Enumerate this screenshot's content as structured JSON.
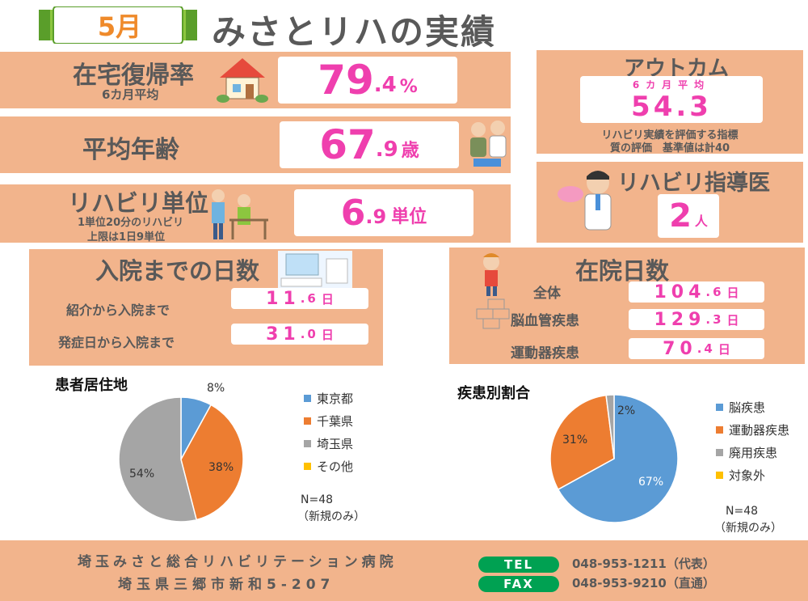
{
  "header": {
    "month": "5月",
    "title": "みさとリハの実績"
  },
  "home_return": {
    "label": "在宅復帰率",
    "sub": "6カ月平均",
    "value_int": "79",
    "value_dec": ".4",
    "unit": "%"
  },
  "avg_age": {
    "label": "平均年齢",
    "value_int": "67",
    "value_dec": ".9",
    "unit": "歳"
  },
  "rehab_units": {
    "label": "リハビリ単位",
    "sub1": "1単位20分のリハビリ",
    "sub2": "上限は1日9単位",
    "value_int": "6",
    "value_dec": ".9",
    "unit": "単位"
  },
  "outcome": {
    "label": "アウトカム",
    "sub": "6カ月平均",
    "value": "54.3",
    "note1": "リハビリ実績を評価する指標",
    "note2": "質の評価　基準値は計40"
  },
  "doctors": {
    "label": "リハビリ指導医",
    "value": "2",
    "unit": "人"
  },
  "days_to_admission": {
    "label": "入院までの日数",
    "rows": [
      {
        "label": "紹介から入院まで",
        "int": "11",
        "dec": ".6",
        "unit": "日"
      },
      {
        "label": "発症日から入院まで",
        "int": "31",
        "dec": ".0",
        "unit": "日"
      }
    ]
  },
  "stay_days": {
    "label": "在院日数",
    "rows": [
      {
        "label": "全体",
        "int": "104",
        "dec": ".6",
        "unit": "日"
      },
      {
        "label": "脳血管疾患",
        "int": "129",
        "dec": ".3",
        "unit": "日"
      },
      {
        "label": "運動器疾患",
        "int": "70",
        "dec": ".4",
        "unit": "日"
      }
    ]
  },
  "chart_data": [
    {
      "type": "pie",
      "title": "患者居住地",
      "categories": [
        "東京都",
        "千葉県",
        "埼玉県",
        "その他"
      ],
      "values": [
        8,
        38,
        54,
        0
      ],
      "labels": [
        "8%",
        "38%",
        "54%",
        ""
      ],
      "colors": [
        "#5b9bd5",
        "#ed7d31",
        "#a5a5a5",
        "#ffc000"
      ],
      "note1": "N=48",
      "note2": "（新規のみ）",
      "legend": "right"
    },
    {
      "type": "pie",
      "title": "疾患別割合",
      "categories": [
        "脳疾患",
        "運動器疾患",
        "廃用疾患",
        "対象外"
      ],
      "values": [
        67,
        31,
        2,
        0
      ],
      "labels": [
        "67%",
        "31%",
        "2%",
        ""
      ],
      "colors": [
        "#5b9bd5",
        "#ed7d31",
        "#a5a5a5",
        "#ffc000"
      ],
      "note1": "N=48",
      "note2": "（新規のみ）",
      "legend": "right"
    }
  ],
  "footer": {
    "hospital": "埼玉みさと総合リハビリテーション病院",
    "address": "埼玉県三郷市新和5-207",
    "tel_label": "TEL",
    "tel": "048-953-1211（代表）",
    "fax_label": "FAX",
    "fax": "048-953-9210（直通）"
  },
  "colors": {
    "panel": "#f2b48c",
    "accent_pink": "#ef3fae",
    "footer_green": "#00a152",
    "header_green": "#8cc63f"
  }
}
